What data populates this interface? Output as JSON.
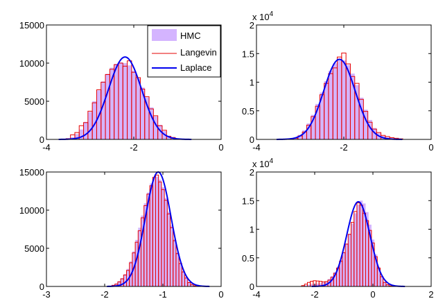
{
  "chart_data": [
    {
      "type": "histogram",
      "panel": "top-left",
      "xlim": [
        -4,
        0
      ],
      "ylim": [
        0,
        15000
      ],
      "xticks": [
        "-4",
        "-2",
        "0"
      ],
      "yticks": [
        "0",
        "5000",
        "10000",
        "15000"
      ],
      "y_exponent": "",
      "legend": {
        "placement": "top-right",
        "entries": [
          "HMC",
          "Langevin",
          "Laplace"
        ]
      },
      "hmc": {
        "bin_width": 0.1,
        "x": [
          -3.5,
          -3.4,
          -3.3,
          -3.2,
          -3.1,
          -3.0,
          -2.9,
          -2.8,
          -2.7,
          -2.6,
          -2.5,
          -2.4,
          -2.3,
          -2.2,
          -2.1,
          -2.0,
          -1.9,
          -1.8,
          -1.7,
          -1.6,
          -1.5,
          -1.4,
          -1.3,
          -1.2,
          -1.1,
          -1.0
        ],
        "y": [
          80,
          300,
          700,
          1300,
          2300,
          3600,
          5000,
          6400,
          7600,
          8600,
          9400,
          9900,
          10100,
          10000,
          9700,
          9000,
          8000,
          6800,
          5500,
          4200,
          3000,
          1900,
          1100,
          500,
          200,
          60
        ]
      },
      "langevin": {
        "bin_width": 0.1,
        "x": [
          -3.5,
          -3.4,
          -3.3,
          -3.2,
          -3.1,
          -3.0,
          -2.9,
          -2.8,
          -2.7,
          -2.6,
          -2.5,
          -2.4,
          -2.3,
          -2.2,
          -2.1,
          -2.0,
          -1.9,
          -1.8,
          -1.7,
          -1.6,
          -1.5,
          -1.4,
          -1.3,
          -1.2,
          -1.1,
          -1.0
        ],
        "y": [
          100,
          600,
          900,
          1800,
          2200,
          3700,
          4800,
          6500,
          7500,
          8500,
          9200,
          9800,
          10000,
          9600,
          10300,
          8800,
          8100,
          6600,
          5600,
          4000,
          3100,
          1800,
          1200,
          400,
          250,
          50
        ]
      },
      "laplace": {
        "mu": -2.2,
        "sigma": 0.38,
        "peak": 10800
      }
    },
    {
      "type": "histogram",
      "panel": "top-right",
      "xlim": [
        -4,
        0
      ],
      "ylim": [
        0,
        20000
      ],
      "xticks": [
        "-4",
        "-2",
        "0"
      ],
      "yticks": [
        "0",
        "0.5",
        "1",
        "1.5",
        "2"
      ],
      "y_exponent": "x 10^4",
      "hmc": {
        "bin_width": 0.1,
        "x": [
          -3.1,
          -3.0,
          -2.9,
          -2.8,
          -2.7,
          -2.6,
          -2.5,
          -2.4,
          -2.3,
          -2.2,
          -2.1,
          -2.0,
          -1.9,
          -1.8,
          -1.7,
          -1.6,
          -1.5,
          -1.4,
          -1.3,
          -1.2,
          -1.1,
          -1.0,
          -0.9,
          -0.8,
          -0.7
        ],
        "y": [
          300,
          800,
          1600,
          2800,
          4300,
          6200,
          8200,
          10200,
          12000,
          13300,
          14000,
          13800,
          13000,
          11500,
          9500,
          7300,
          5200,
          3400,
          2000,
          1100,
          600,
          350,
          200,
          100,
          50
        ]
      },
      "langevin": {
        "bin_width": 0.1,
        "x": [
          -3.1,
          -3.0,
          -2.9,
          -2.8,
          -2.7,
          -2.6,
          -2.5,
          -2.4,
          -2.3,
          -2.2,
          -2.1,
          -2.0,
          -1.9,
          -1.8,
          -1.7,
          -1.6,
          -1.5,
          -1.4,
          -1.3,
          -1.2,
          -1.1,
          -1.0,
          -0.9,
          -0.8,
          -0.7
        ],
        "y": [
          200,
          600,
          1300,
          2500,
          4000,
          5800,
          7800,
          9800,
          11500,
          12500,
          14400,
          15100,
          13200,
          11000,
          9800,
          7000,
          4900,
          3000,
          1800,
          1200,
          700,
          500,
          300,
          200,
          100
        ]
      },
      "laplace": {
        "mu": -2.1,
        "sigma": 0.36,
        "peak": 14000
      }
    },
    {
      "type": "histogram",
      "panel": "bottom-left",
      "xlim": [
        -3,
        0
      ],
      "ylim": [
        0,
        15000
      ],
      "xticks": [
        "-3",
        "-2",
        "-1",
        "0"
      ],
      "yticks": [
        "0",
        "5000",
        "10000",
        "15000"
      ],
      "y_exponent": "",
      "hmc": {
        "bin_width": 0.05,
        "x": [
          -1.85,
          -1.8,
          -1.75,
          -1.7,
          -1.65,
          -1.6,
          -1.55,
          -1.5,
          -1.45,
          -1.4,
          -1.35,
          -1.3,
          -1.25,
          -1.2,
          -1.15,
          -1.1,
          -1.05,
          -1.0,
          -0.95,
          -0.9,
          -0.85,
          -0.8,
          -0.75,
          -0.7,
          -0.65,
          -0.6,
          -0.55,
          -0.5,
          -0.45
        ],
        "y": [
          200,
          400,
          700,
          1100,
          1600,
          2300,
          3300,
          4600,
          6100,
          7700,
          9300,
          10900,
          12300,
          13500,
          14200,
          14400,
          14000,
          13000,
          11600,
          9800,
          8000,
          6200,
          4500,
          3100,
          2000,
          1200,
          600,
          300,
          100
        ]
      },
      "langevin": {
        "bin_width": 0.05,
        "x": [
          -1.85,
          -1.8,
          -1.75,
          -1.7,
          -1.65,
          -1.6,
          -1.55,
          -1.5,
          -1.45,
          -1.4,
          -1.35,
          -1.3,
          -1.25,
          -1.2,
          -1.15,
          -1.1,
          -1.05,
          -1.0,
          -0.95,
          -0.9,
          -0.85,
          -0.8,
          -0.75,
          -0.7,
          -0.65,
          -0.6,
          -0.55,
          -0.5,
          -0.45
        ],
        "y": [
          150,
          300,
          600,
          1000,
          1500,
          2100,
          3100,
          4400,
          5800,
          7300,
          9000,
          10600,
          12100,
          13200,
          14300,
          14600,
          13700,
          12700,
          11300,
          9500,
          7700,
          6000,
          4300,
          3000,
          1900,
          1100,
          500,
          250,
          80
        ]
      },
      "laplace": {
        "mu": -1.08,
        "sigma": 0.22,
        "peak": 15000
      }
    },
    {
      "type": "histogram",
      "panel": "bottom-right",
      "xlim": [
        -4,
        2
      ],
      "ylim": [
        0,
        20000
      ],
      "xticks": [
        "-4",
        "-2",
        "0",
        "2"
      ],
      "yticks": [
        "0",
        "0.5",
        "1",
        "1.5",
        "2"
      ],
      "y_exponent": "x 10^4",
      "hmc": {
        "bin_width": 0.1,
        "x": [
          -2.4,
          -2.3,
          -2.2,
          -2.1,
          -2.0,
          -1.9,
          -1.8,
          -1.7,
          -1.6,
          -1.5,
          -1.4,
          -1.3,
          -1.2,
          -1.1,
          -1.0,
          -0.9,
          -0.8,
          -0.7,
          -0.6,
          -0.5,
          -0.4,
          -0.3,
          -0.2,
          -0.1,
          0.0,
          0.1,
          0.2,
          0.3,
          0.4,
          0.5,
          0.6,
          0.7
        ],
        "y": [
          100,
          200,
          300,
          400,
          450,
          500,
          550,
          700,
          900,
          1300,
          1800,
          2500,
          3400,
          4600,
          6000,
          7500,
          9200,
          11000,
          12800,
          14300,
          15000,
          14500,
          13000,
          10800,
          8200,
          5600,
          3400,
          1800,
          800,
          300,
          120,
          50
        ]
      },
      "langevin": {
        "bin_width": 0.1,
        "x": [
          -2.4,
          -2.3,
          -2.2,
          -2.1,
          -2.0,
          -1.9,
          -1.8,
          -1.7,
          -1.6,
          -1.5,
          -1.4,
          -1.3,
          -1.2,
          -1.1,
          -1.0,
          -0.9,
          -0.8,
          -0.7,
          -0.6,
          -0.5,
          -0.4,
          -0.3,
          -0.2,
          -0.1,
          0.0,
          0.1,
          0.2,
          0.3,
          0.4,
          0.5,
          0.6,
          0.7
        ],
        "y": [
          150,
          400,
          700,
          900,
          1000,
          950,
          900,
          800,
          850,
          1100,
          1600,
          2300,
          3200,
          4400,
          5900,
          7400,
          9100,
          11200,
          13100,
          14600,
          14200,
          12800,
          11500,
          9800,
          7600,
          5200,
          3200,
          1700,
          700,
          300,
          100,
          50
        ]
      },
      "laplace": {
        "mu": -0.5,
        "sigma": 0.4,
        "peak": 14800
      }
    }
  ],
  "colors": {
    "hmc": "#d4b4ff",
    "langevin": "#e60000",
    "laplace": "#0000ee"
  }
}
